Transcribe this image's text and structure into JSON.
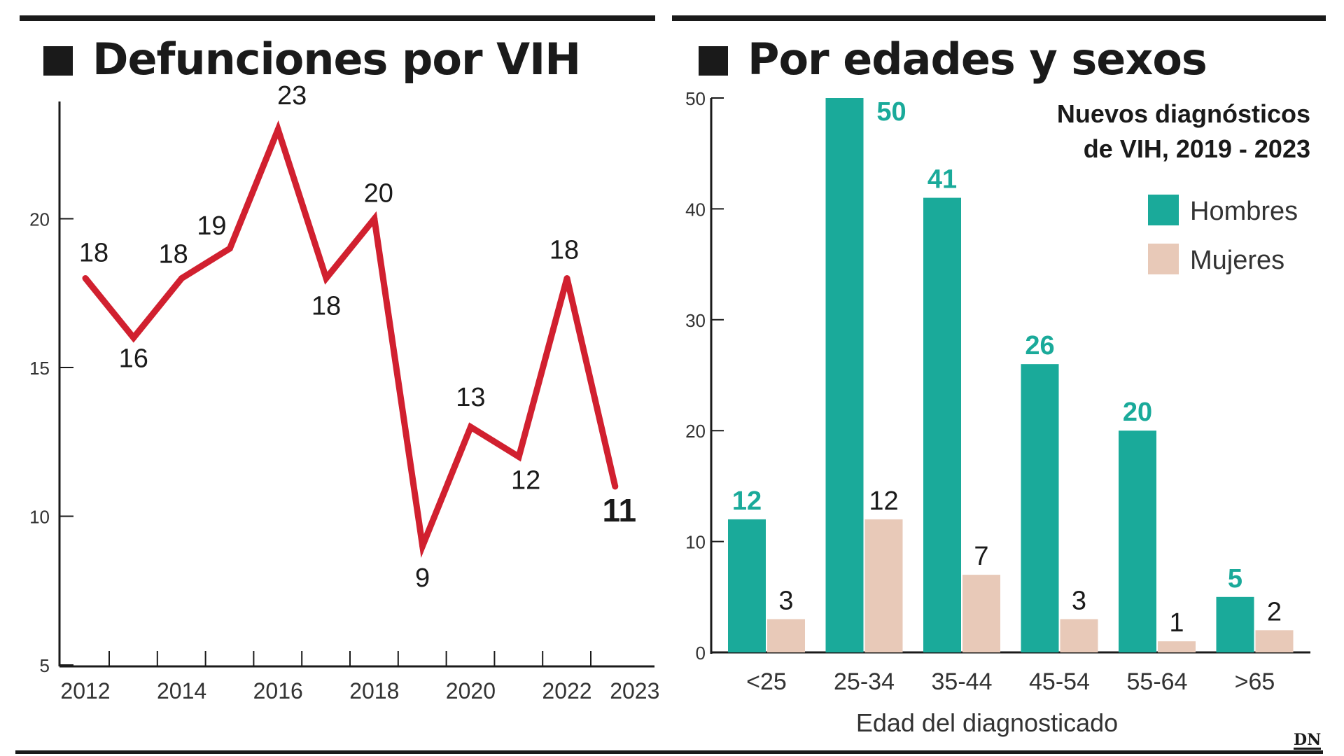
{
  "left": {
    "title": "Defunciones por VIH",
    "chart_data": {
      "type": "line",
      "title": "Defunciones por VIH",
      "x": [
        2012,
        2013,
        2014,
        2015,
        2016,
        2017,
        2018,
        2019,
        2020,
        2021,
        2022,
        2023
      ],
      "x_tick_labels": [
        "2012",
        "2014",
        "2016",
        "2018",
        "2020",
        "2022",
        "2023"
      ],
      "y_ticks": [
        5,
        10,
        15,
        20
      ],
      "ylim": [
        5,
        25
      ],
      "series": [
        {
          "values": [
            18,
            16,
            18,
            19,
            23,
            18,
            20,
            9,
            13,
            12,
            18,
            11
          ]
        }
      ],
      "data_labels": [
        "18",
        "16",
        "18",
        "19",
        "23",
        "18",
        "20",
        "9",
        "13",
        "12",
        "18",
        "11"
      ],
      "color": "#d1202f",
      "grid": false
    }
  },
  "right": {
    "title": "Por edades y sexos",
    "chart_data": {
      "type": "bar",
      "title": "Por edades y sexos",
      "subtitle": [
        "Nuevos diagnósticos",
        "de VIH, 2019 - 2023"
      ],
      "categories": [
        "<25",
        "25-34",
        "35-44",
        "45-54",
        "55-64",
        ">65"
      ],
      "xlabel": "Edad del diagnosticado",
      "y_ticks": [
        0,
        10,
        20,
        30,
        40,
        50
      ],
      "ylim": [
        0,
        50
      ],
      "series": [
        {
          "name": "Hombres",
          "values": [
            12,
            50,
            41,
            26,
            20,
            5
          ],
          "color": "#1aaa9a"
        },
        {
          "name": "Mujeres",
          "values": [
            3,
            12,
            7,
            3,
            1,
            2
          ],
          "color": "#e8c9b8"
        }
      ],
      "legend_position": "top-right",
      "grid": false
    }
  },
  "logo": "DN"
}
